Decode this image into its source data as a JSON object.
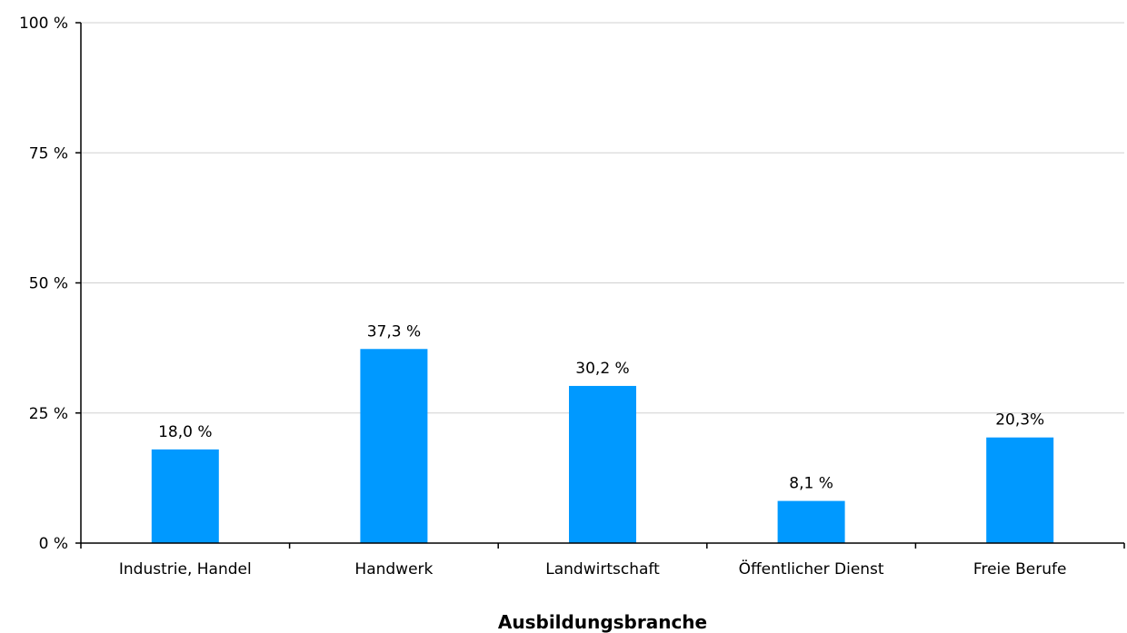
{
  "chart_data": {
    "type": "bar",
    "categories": [
      "Industrie, Handel",
      "Handwerk",
      "Landwirtschaft",
      "Öffentlicher Dienst",
      "Freie Berufe"
    ],
    "values": [
      18.0,
      37.3,
      30.2,
      8.1,
      20.3
    ],
    "data_labels": [
      "18,0 %",
      "37,3 %",
      "30,2 %",
      "8,1 %",
      "20,3%"
    ],
    "ylim": [
      0,
      100
    ],
    "yticks": [
      0,
      25,
      50,
      75,
      100
    ],
    "ytick_labels": [
      "0 %",
      "25 %",
      "50 %",
      "75 %",
      "100 %"
    ],
    "xlabel": "Ausbildungsbranche",
    "ylabel": "",
    "grid": true,
    "bar_color": "#0099ff",
    "grid_color": "#d0d0d0",
    "axis_color": "#000000"
  }
}
